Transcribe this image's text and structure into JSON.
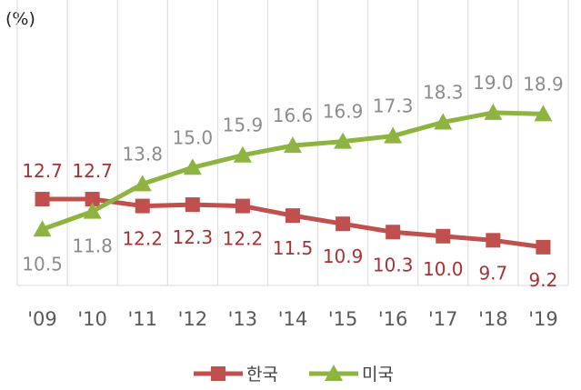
{
  "chart_data": {
    "type": "line",
    "unit_label": "(%)",
    "categories": [
      "'09",
      "'10",
      "'11",
      "'12",
      "'13",
      "'14",
      "'15",
      "'16",
      "'17",
      "'18",
      "'19"
    ],
    "ylim": [
      8,
      22
    ],
    "grid": "vertical",
    "legend_position": "bottom",
    "series": [
      {
        "name": "한국",
        "color": "#c0504d",
        "marker": "square",
        "values": [
          12.7,
          12.7,
          12.2,
          12.3,
          12.2,
          11.5,
          10.9,
          10.3,
          10.0,
          9.7,
          9.2
        ],
        "labels": [
          "12.7",
          "12.7",
          "12.2",
          "12.3",
          "12.2",
          "11.5",
          "10.9",
          "10.3",
          "10.0",
          "9.7",
          "9.2"
        ],
        "label_color": "#a83232"
      },
      {
        "name": "미국",
        "color": "#8db441",
        "marker": "triangle",
        "values": [
          10.5,
          11.8,
          13.8,
          15.0,
          15.9,
          16.6,
          16.9,
          17.3,
          18.3,
          19.0,
          18.9
        ],
        "labels": [
          "10.5",
          "11.8",
          "13.8",
          "15.0",
          "15.9",
          "16.6",
          "16.9",
          "17.3",
          "18.3",
          "19.0",
          "18.9"
        ],
        "label_color": "#8c8c8c"
      }
    ]
  }
}
